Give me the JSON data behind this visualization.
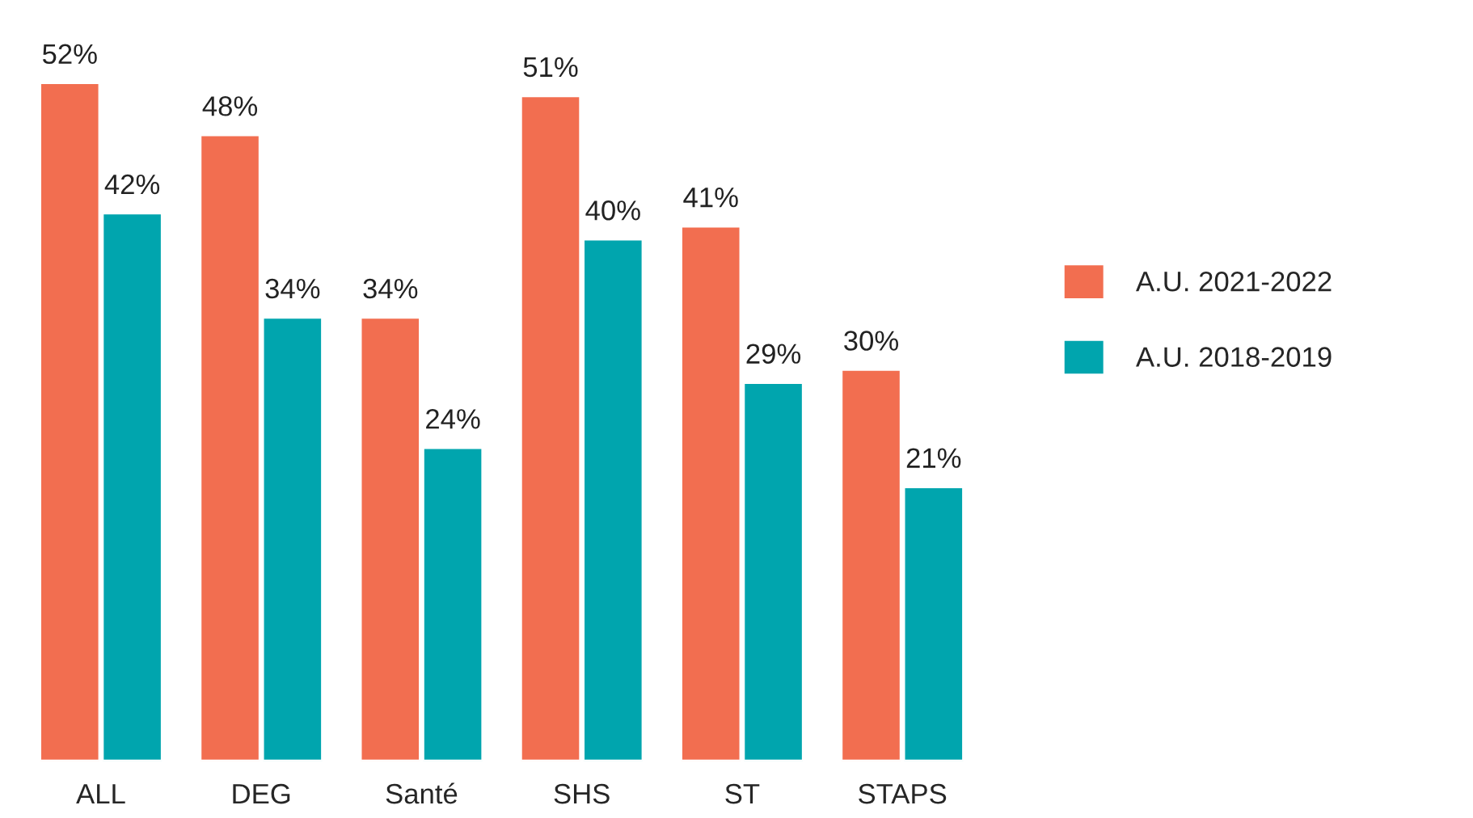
{
  "chart_data": {
    "type": "bar",
    "categories": [
      "ALL",
      "DEG",
      "Santé",
      "SHS",
      "ST",
      "STAPS"
    ],
    "series": [
      {
        "name": "A.U. 2021-2022",
        "color": "#f26e50",
        "values": [
          52,
          48,
          34,
          51,
          41,
          30
        ],
        "value_labels": [
          "52%",
          "48%",
          "34%",
          "51%",
          "41%",
          "30%"
        ]
      },
      {
        "name": "A.U. 2018-2019",
        "color": "#00a5ae",
        "values": [
          42,
          34,
          24,
          40,
          29,
          21
        ],
        "value_labels": [
          "42%",
          "34%",
          "24%",
          "40%",
          "29%",
          "21%"
        ]
      }
    ],
    "legend": "right",
    "grid": false,
    "tick_labels": "x"
  }
}
